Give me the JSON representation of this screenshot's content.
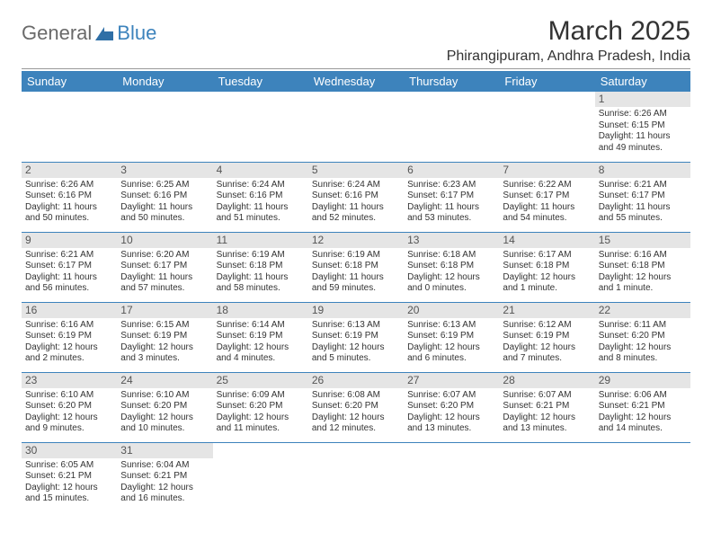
{
  "brand": {
    "part1": "General",
    "part2": "Blue",
    "part2_color": "#3d83bc",
    "shape_color": "#2f6fa6"
  },
  "title": "March 2025",
  "location": "Phirangipuram, Andhra Pradesh, India",
  "header_bg": "#3d83bc",
  "header_fg": "#ffffff",
  "daynum_bg": "#e5e5e5",
  "row_divider": "#3d83bc",
  "weekdays": [
    "Sunday",
    "Monday",
    "Tuesday",
    "Wednesday",
    "Thursday",
    "Friday",
    "Saturday"
  ],
  "days": {
    "1": {
      "sunrise": "6:26 AM",
      "sunset": "6:15 PM",
      "daylight": "11 hours and 49 minutes."
    },
    "2": {
      "sunrise": "6:26 AM",
      "sunset": "6:16 PM",
      "daylight": "11 hours and 50 minutes."
    },
    "3": {
      "sunrise": "6:25 AM",
      "sunset": "6:16 PM",
      "daylight": "11 hours and 50 minutes."
    },
    "4": {
      "sunrise": "6:24 AM",
      "sunset": "6:16 PM",
      "daylight": "11 hours and 51 minutes."
    },
    "5": {
      "sunrise": "6:24 AM",
      "sunset": "6:16 PM",
      "daylight": "11 hours and 52 minutes."
    },
    "6": {
      "sunrise": "6:23 AM",
      "sunset": "6:17 PM",
      "daylight": "11 hours and 53 minutes."
    },
    "7": {
      "sunrise": "6:22 AM",
      "sunset": "6:17 PM",
      "daylight": "11 hours and 54 minutes."
    },
    "8": {
      "sunrise": "6:21 AM",
      "sunset": "6:17 PM",
      "daylight": "11 hours and 55 minutes."
    },
    "9": {
      "sunrise": "6:21 AM",
      "sunset": "6:17 PM",
      "daylight": "11 hours and 56 minutes."
    },
    "10": {
      "sunrise": "6:20 AM",
      "sunset": "6:17 PM",
      "daylight": "11 hours and 57 minutes."
    },
    "11": {
      "sunrise": "6:19 AM",
      "sunset": "6:18 PM",
      "daylight": "11 hours and 58 minutes."
    },
    "12": {
      "sunrise": "6:19 AM",
      "sunset": "6:18 PM",
      "daylight": "11 hours and 59 minutes."
    },
    "13": {
      "sunrise": "6:18 AM",
      "sunset": "6:18 PM",
      "daylight": "12 hours and 0 minutes."
    },
    "14": {
      "sunrise": "6:17 AM",
      "sunset": "6:18 PM",
      "daylight": "12 hours and 1 minute."
    },
    "15": {
      "sunrise": "6:16 AM",
      "sunset": "6:18 PM",
      "daylight": "12 hours and 1 minute."
    },
    "16": {
      "sunrise": "6:16 AM",
      "sunset": "6:19 PM",
      "daylight": "12 hours and 2 minutes."
    },
    "17": {
      "sunrise": "6:15 AM",
      "sunset": "6:19 PM",
      "daylight": "12 hours and 3 minutes."
    },
    "18": {
      "sunrise": "6:14 AM",
      "sunset": "6:19 PM",
      "daylight": "12 hours and 4 minutes."
    },
    "19": {
      "sunrise": "6:13 AM",
      "sunset": "6:19 PM",
      "daylight": "12 hours and 5 minutes."
    },
    "20": {
      "sunrise": "6:13 AM",
      "sunset": "6:19 PM",
      "daylight": "12 hours and 6 minutes."
    },
    "21": {
      "sunrise": "6:12 AM",
      "sunset": "6:19 PM",
      "daylight": "12 hours and 7 minutes."
    },
    "22": {
      "sunrise": "6:11 AM",
      "sunset": "6:20 PM",
      "daylight": "12 hours and 8 minutes."
    },
    "23": {
      "sunrise": "6:10 AM",
      "sunset": "6:20 PM",
      "daylight": "12 hours and 9 minutes."
    },
    "24": {
      "sunrise": "6:10 AM",
      "sunset": "6:20 PM",
      "daylight": "12 hours and 10 minutes."
    },
    "25": {
      "sunrise": "6:09 AM",
      "sunset": "6:20 PM",
      "daylight": "12 hours and 11 minutes."
    },
    "26": {
      "sunrise": "6:08 AM",
      "sunset": "6:20 PM",
      "daylight": "12 hours and 12 minutes."
    },
    "27": {
      "sunrise": "6:07 AM",
      "sunset": "6:20 PM",
      "daylight": "12 hours and 13 minutes."
    },
    "28": {
      "sunrise": "6:07 AM",
      "sunset": "6:21 PM",
      "daylight": "12 hours and 13 minutes."
    },
    "29": {
      "sunrise": "6:06 AM",
      "sunset": "6:21 PM",
      "daylight": "12 hours and 14 minutes."
    },
    "30": {
      "sunrise": "6:05 AM",
      "sunset": "6:21 PM",
      "daylight": "12 hours and 15 minutes."
    },
    "31": {
      "sunrise": "6:04 AM",
      "sunset": "6:21 PM",
      "daylight": "12 hours and 16 minutes."
    }
  },
  "labels": {
    "sunrise": "Sunrise: ",
    "sunset": "Sunset: ",
    "daylight": "Daylight: "
  },
  "grid": [
    [
      null,
      null,
      null,
      null,
      null,
      null,
      "1"
    ],
    [
      "2",
      "3",
      "4",
      "5",
      "6",
      "7",
      "8"
    ],
    [
      "9",
      "10",
      "11",
      "12",
      "13",
      "14",
      "15"
    ],
    [
      "16",
      "17",
      "18",
      "19",
      "20",
      "21",
      "22"
    ],
    [
      "23",
      "24",
      "25",
      "26",
      "27",
      "28",
      "29"
    ],
    [
      "30",
      "31",
      null,
      null,
      null,
      null,
      null
    ]
  ]
}
